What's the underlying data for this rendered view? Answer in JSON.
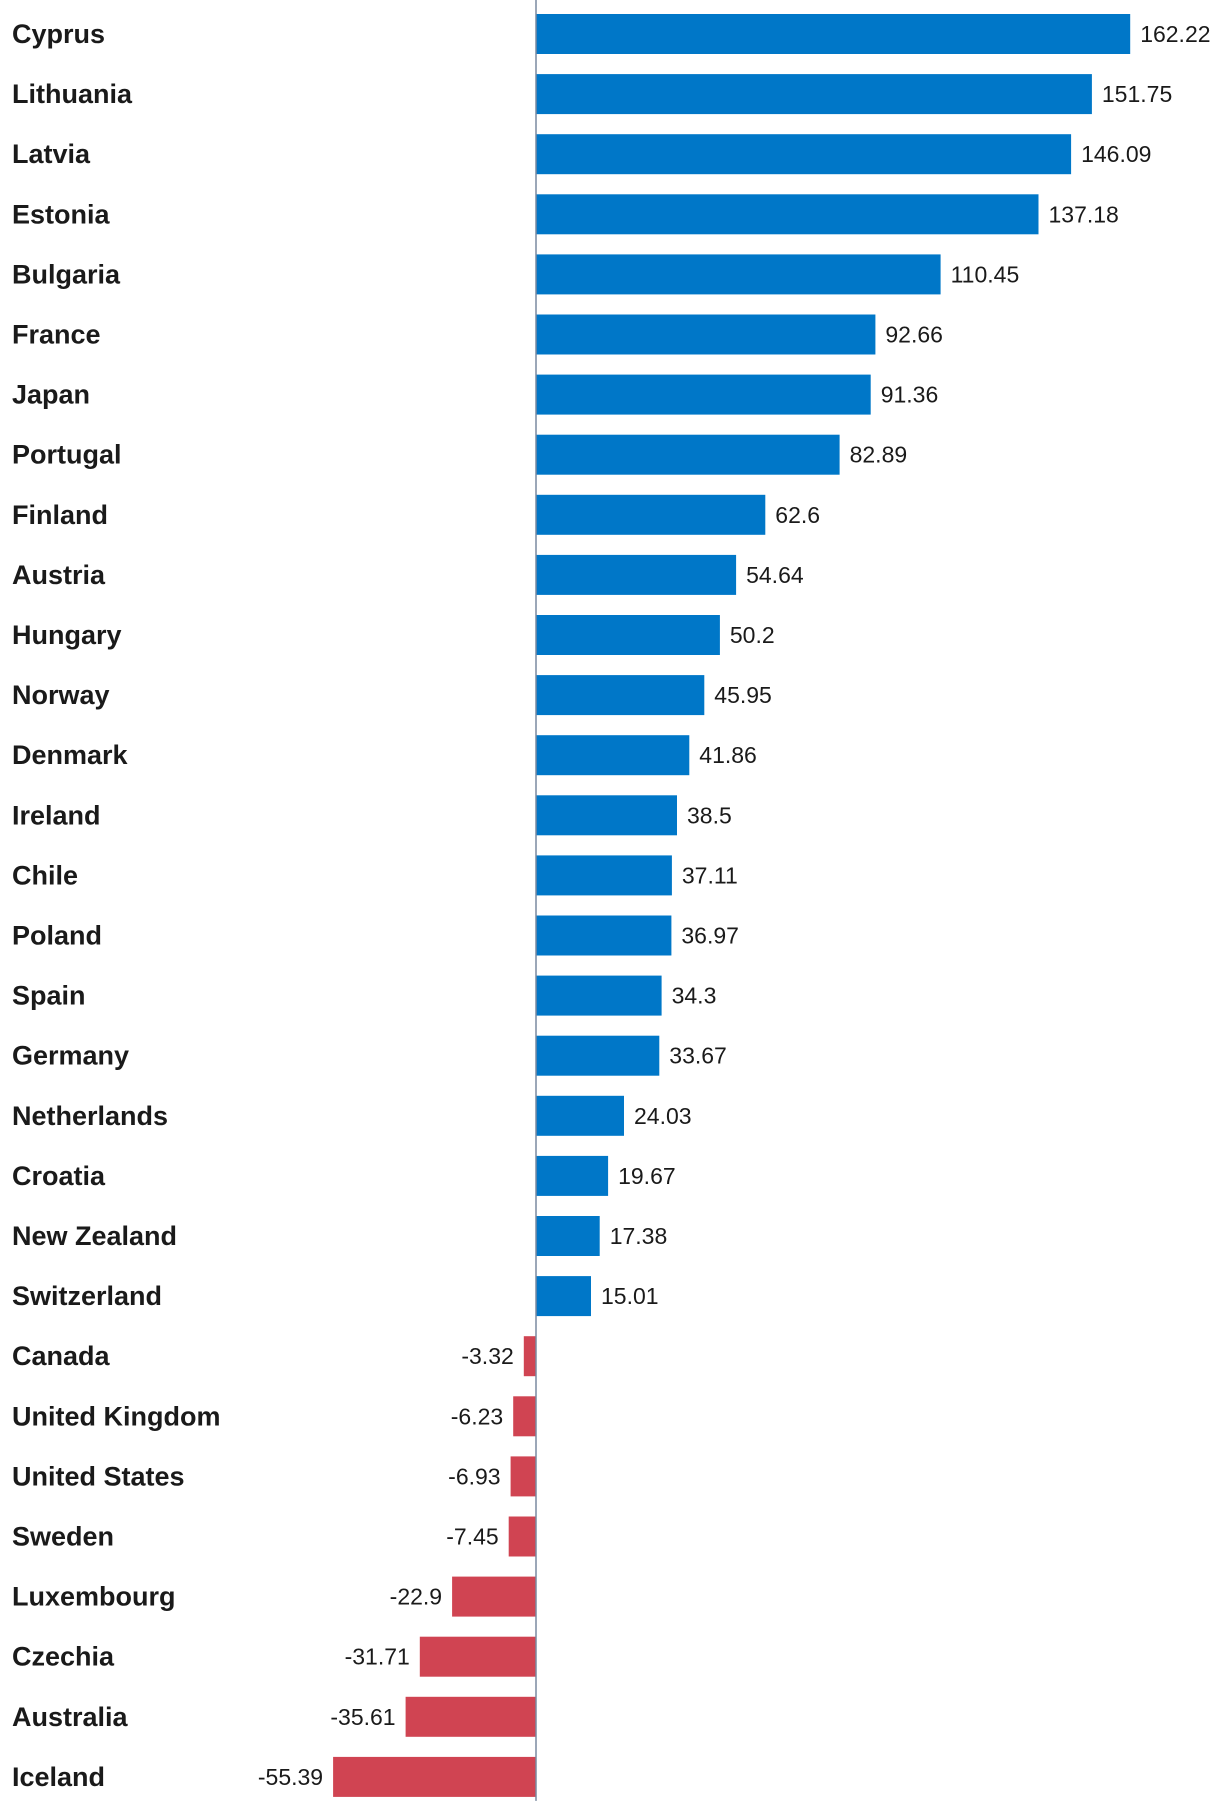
{
  "chart_data": {
    "type": "bar",
    "orientation": "horizontal",
    "title": "",
    "xlabel": "",
    "ylabel": "",
    "xlim": [
      -55.39,
      162.22
    ],
    "grid": false,
    "colors": {
      "positive": "#0077c8",
      "negative": "#d04452",
      "axis": "#7a8aa0",
      "text": "#1a1a1a"
    },
    "categories": [
      "Cyprus",
      "Lithuania",
      "Latvia",
      "Estonia",
      "Bulgaria",
      "France",
      "Japan",
      "Portugal",
      "Finland",
      "Austria",
      "Hungary",
      "Norway",
      "Denmark",
      "Ireland",
      "Chile",
      "Poland",
      "Spain",
      "Germany",
      "Netherlands",
      "Croatia",
      "New Zealand",
      "Switzerland",
      "Canada",
      "United Kingdom",
      "United States",
      "Sweden",
      "Luxembourg",
      "Czechia",
      "Australia",
      "Iceland"
    ],
    "values": [
      162.22,
      151.75,
      146.09,
      137.18,
      110.45,
      92.66,
      91.36,
      82.89,
      62.6,
      54.64,
      50.2,
      45.95,
      41.86,
      38.5,
      37.11,
      36.97,
      34.3,
      33.67,
      24.03,
      19.67,
      17.38,
      15.01,
      -3.32,
      -6.23,
      -6.93,
      -7.45,
      -22.9,
      -31.71,
      -35.61,
      -55.39
    ],
    "value_labels": [
      "162.22",
      "151.75",
      "146.09",
      "137.18",
      "110.45",
      "92.66",
      "91.36",
      "82.89",
      "62.6",
      "54.64",
      "50.2",
      "45.95",
      "41.86",
      "38.5",
      "37.11",
      "36.97",
      "34.3",
      "33.67",
      "24.03",
      "19.67",
      "17.38",
      "15.01",
      "-3.32",
      "-6.23",
      "-6.93",
      "-7.45",
      "-22.9",
      "-31.71",
      "-35.61",
      "-55.39"
    ]
  }
}
